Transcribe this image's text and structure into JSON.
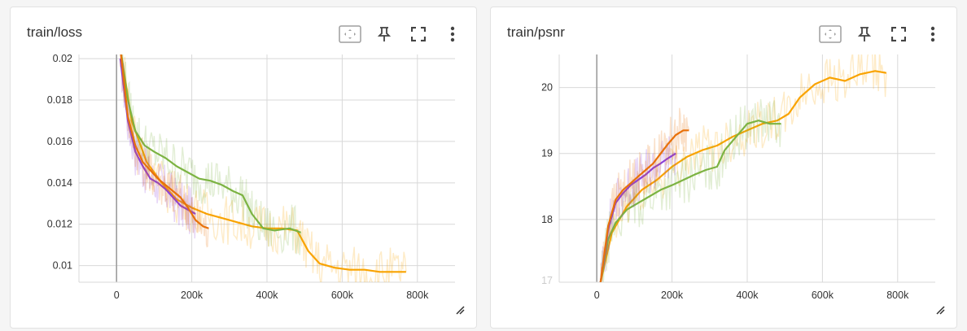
{
  "cards": [
    {
      "title": "train/loss",
      "toolbar": [
        "fit-domain-icon",
        "pin-icon",
        "fullscreen-icon",
        "more-vert-icon"
      ]
    },
    {
      "title": "train/psnr",
      "toolbar": [
        "fit-domain-icon",
        "pin-icon",
        "fullscreen-icon",
        "more-vert-icon"
      ]
    }
  ],
  "colors": {
    "purple": "#8b3fd9",
    "orange_dark": "#e8710a",
    "green": "#7cb342",
    "orange_light": "#f9a300"
  },
  "chart_data": [
    {
      "type": "line",
      "title": "train/loss",
      "xlim": [
        -100000,
        900000
      ],
      "ylim": [
        0.0092,
        0.0202
      ],
      "xticks": [
        0,
        200000,
        400000,
        600000,
        800000
      ],
      "xtick_labels": [
        "0",
        "200k",
        "400k",
        "600k",
        "800k"
      ],
      "yticks": [
        0.01,
        0.012,
        0.014,
        0.016,
        0.018,
        0.02
      ],
      "ytick_labels": [
        "0.01",
        "0.012",
        "0.014",
        "0.016",
        "0.018",
        "0.02"
      ],
      "grid": true,
      "series": [
        {
          "color": "#8b3fd9",
          "x": [
            10000,
            30000,
            50000,
            70000,
            90000,
            110000,
            130000,
            150000,
            170000,
            190000,
            210000
          ],
          "y": [
            0.02,
            0.017,
            0.0155,
            0.0148,
            0.0142,
            0.014,
            0.0137,
            0.0133,
            0.0129,
            0.0127,
            0.0125
          ]
        },
        {
          "color": "#e8710a",
          "x": [
            10000,
            30000,
            50000,
            70000,
            90000,
            110000,
            130000,
            150000,
            170000,
            190000,
            210000,
            230000,
            245000
          ],
          "y": [
            0.0205,
            0.0172,
            0.0158,
            0.015,
            0.0146,
            0.0142,
            0.0139,
            0.0136,
            0.0133,
            0.0128,
            0.0122,
            0.0119,
            0.0118
          ]
        },
        {
          "color": "#7cb342",
          "x": [
            10000,
            30000,
            50000,
            75000,
            100000,
            130000,
            160000,
            190000,
            220000,
            250000,
            280000,
            310000,
            335000,
            360000,
            390000,
            420000,
            460000,
            490000
          ],
          "y": [
            0.0205,
            0.018,
            0.0165,
            0.0158,
            0.0155,
            0.0152,
            0.0148,
            0.0145,
            0.0142,
            0.0141,
            0.0139,
            0.0136,
            0.0134,
            0.0125,
            0.0118,
            0.0117,
            0.0118,
            0.0116
          ]
        },
        {
          "color": "#f9a300",
          "x": [
            10000,
            40000,
            80000,
            120000,
            160000,
            200000,
            240000,
            280000,
            320000,
            360000,
            400000,
            440000,
            480000,
            510000,
            540000,
            580000,
            620000,
            660000,
            700000,
            740000,
            770000
          ],
          "y": [
            0.0205,
            0.017,
            0.015,
            0.014,
            0.0132,
            0.0128,
            0.0125,
            0.0123,
            0.0121,
            0.0119,
            0.0118,
            0.0118,
            0.0117,
            0.0107,
            0.0101,
            0.0099,
            0.0098,
            0.0098,
            0.0097,
            0.0097,
            0.0097
          ]
        }
      ]
    },
    {
      "type": "line",
      "title": "train/psnr",
      "xlim": [
        -100000,
        900000
      ],
      "ylim": [
        17.05,
        20.5
      ],
      "xticks": [
        0,
        200000,
        400000,
        600000,
        800000
      ],
      "xtick_labels": [
        "0",
        "200k",
        "400k",
        "600k",
        "800k"
      ],
      "yticks": [
        17,
        18,
        19,
        20
      ],
      "ytick_labels": [
        "17",
        "18",
        "19",
        "20"
      ],
      "grid": true,
      "series": [
        {
          "color": "#8b3fd9",
          "x": [
            10000,
            30000,
            50000,
            70000,
            90000,
            110000,
            130000,
            150000,
            170000,
            190000,
            210000
          ],
          "y": [
            17.05,
            17.85,
            18.25,
            18.4,
            18.52,
            18.6,
            18.68,
            18.78,
            18.85,
            18.93,
            19.0
          ]
        },
        {
          "color": "#e8710a",
          "x": [
            10000,
            30000,
            50000,
            70000,
            90000,
            110000,
            130000,
            150000,
            170000,
            190000,
            210000,
            230000,
            245000
          ],
          "y": [
            17.05,
            17.9,
            18.3,
            18.45,
            18.55,
            18.65,
            18.75,
            18.85,
            19.0,
            19.15,
            19.28,
            19.35,
            19.35
          ]
        },
        {
          "color": "#7cb342",
          "x": [
            10000,
            30000,
            50000,
            80000,
            110000,
            140000,
            170000,
            200000,
            230000,
            260000,
            290000,
            320000,
            340000,
            370000,
            400000,
            430000,
            460000,
            490000
          ],
          "y": [
            17.05,
            17.7,
            17.95,
            18.15,
            18.25,
            18.35,
            18.45,
            18.52,
            18.6,
            18.68,
            18.75,
            18.8,
            19.05,
            19.25,
            19.45,
            19.5,
            19.45,
            19.45
          ]
        },
        {
          "color": "#f9a300",
          "x": [
            10000,
            40000,
            80000,
            120000,
            160000,
            200000,
            240000,
            280000,
            320000,
            360000,
            400000,
            440000,
            480000,
            510000,
            540000,
            580000,
            620000,
            660000,
            700000,
            740000,
            770000
          ],
          "y": [
            17.05,
            17.8,
            18.2,
            18.45,
            18.6,
            18.8,
            18.95,
            19.05,
            19.12,
            19.25,
            19.35,
            19.45,
            19.5,
            19.6,
            19.85,
            20.05,
            20.15,
            20.1,
            20.2,
            20.25,
            20.22
          ]
        }
      ]
    }
  ]
}
